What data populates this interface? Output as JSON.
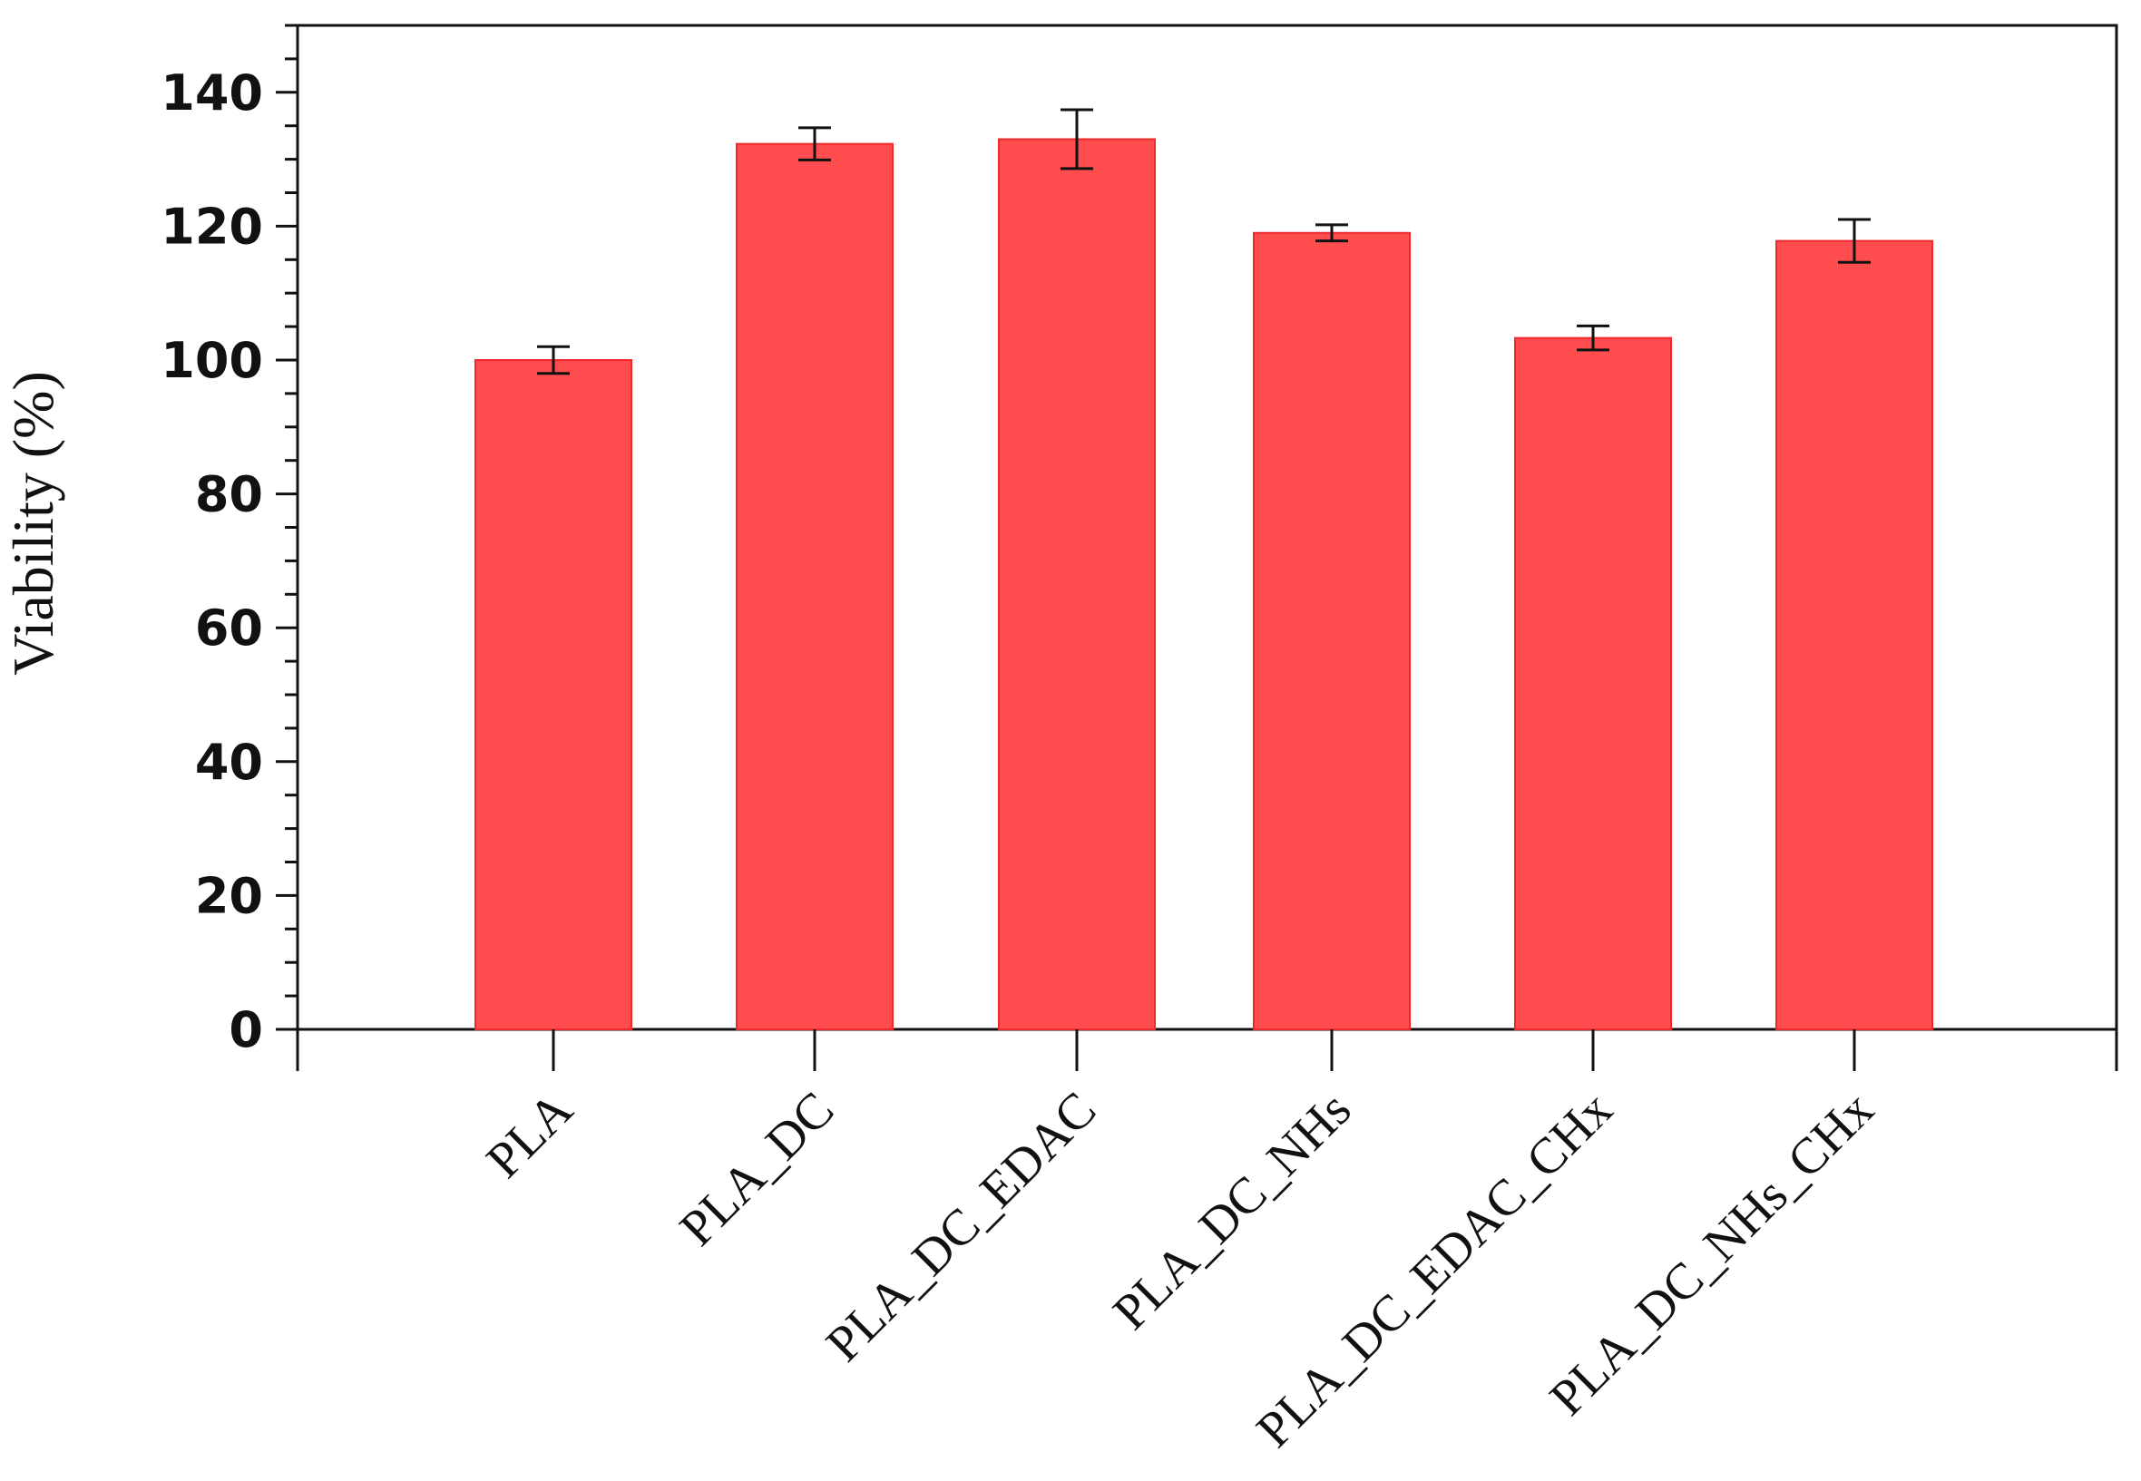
{
  "chart_data": {
    "type": "bar",
    "title": "",
    "xlabel": "",
    "ylabel": "Viability (%)",
    "ylim": [
      0,
      150
    ],
    "yticks": [
      0,
      20,
      40,
      60,
      80,
      100,
      120,
      140
    ],
    "minor_tick_step": 5,
    "grid": false,
    "legend": "none",
    "categories": [
      "PLA",
      "PLA_DC",
      "PLA_DC_EDAC",
      "PLA_DC_NHs",
      "PLA_DC_EDAC_CHx",
      "PLA_DC_NHs_CHx"
    ],
    "values": [
      100,
      132.3,
      133,
      119,
      103.3,
      117.8
    ],
    "errors": [
      2,
      2.4,
      4.4,
      1.2,
      1.8,
      3.2
    ],
    "bar_color": "#ff4d4f",
    "bar_edge_color": "#f02a2c",
    "error_color": "#111111"
  }
}
